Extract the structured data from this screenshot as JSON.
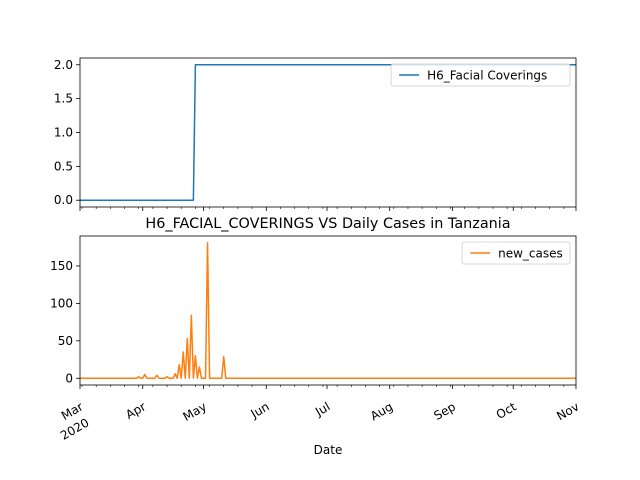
{
  "chart_data": [
    {
      "type": "line",
      "title": "",
      "xlabel": "",
      "ylabel": "",
      "ylim": [
        -0.1,
        2.1
      ],
      "yticks": [
        0.0,
        0.5,
        1.0,
        1.5,
        2.0
      ],
      "ytick_labels": [
        "0.0",
        "0.5",
        "1.0",
        "1.5",
        "2.0"
      ],
      "legend": "upper right",
      "series": [
        {
          "name": "H6_Facial Coverings",
          "color": "#1f77b4",
          "points": [
            [
              "2020-03-01",
              0
            ],
            [
              "2020-04-26",
              0
            ],
            [
              "2020-04-27",
              2
            ],
            [
              "2020-11-01",
              2
            ]
          ]
        }
      ]
    },
    {
      "type": "line",
      "title": "H6_FACIAL_COVERINGS VS Daily Cases in Tanzania",
      "xlabel": "Date",
      "ylabel": "",
      "ylim": [
        -9,
        190
      ],
      "yticks": [
        0,
        50,
        100,
        150
      ],
      "ytick_labels": [
        "0",
        "50",
        "100",
        "150"
      ],
      "legend": "upper right",
      "series": [
        {
          "name": "new_cases",
          "color": "#ff7f0e",
          "points": [
            [
              "2020-03-01",
              0
            ],
            [
              "2020-03-29",
              0
            ],
            [
              "2020-03-30",
              2
            ],
            [
              "2020-03-31",
              0
            ],
            [
              "2020-04-01",
              0
            ],
            [
              "2020-04-02",
              5
            ],
            [
              "2020-04-03",
              0
            ],
            [
              "2020-04-07",
              0
            ],
            [
              "2020-04-08",
              4
            ],
            [
              "2020-04-09",
              0
            ],
            [
              "2020-04-12",
              0
            ],
            [
              "2020-04-13",
              2
            ],
            [
              "2020-04-14",
              0
            ],
            [
              "2020-04-16",
              0
            ],
            [
              "2020-04-17",
              6
            ],
            [
              "2020-04-18",
              0
            ],
            [
              "2020-04-19",
              18
            ],
            [
              "2020-04-20",
              0
            ],
            [
              "2020-04-21",
              35
            ],
            [
              "2020-04-22",
              0
            ],
            [
              "2020-04-23",
              53
            ],
            [
              "2020-04-24",
              0
            ],
            [
              "2020-04-25",
              84
            ],
            [
              "2020-04-26",
              0
            ],
            [
              "2020-04-27",
              30
            ],
            [
              "2020-04-28",
              0
            ],
            [
              "2020-04-29",
              15
            ],
            [
              "2020-04-30",
              0
            ],
            [
              "2020-05-01",
              0
            ],
            [
              "2020-05-02",
              0
            ],
            [
              "2020-05-03",
              181
            ],
            [
              "2020-05-04",
              0
            ],
            [
              "2020-05-10",
              0
            ],
            [
              "2020-05-11",
              29
            ],
            [
              "2020-05-12",
              0
            ],
            [
              "2020-11-01",
              0
            ]
          ]
        }
      ]
    }
  ],
  "x_axis": {
    "start": "2020-03-01",
    "end": "2020-11-01",
    "major_ticks": [
      {
        "date": "2020-03-01",
        "label": "Mar",
        "sublabel": "2020"
      },
      {
        "date": "2020-04-01",
        "label": "Apr",
        "sublabel": ""
      },
      {
        "date": "2020-05-01",
        "label": "May",
        "sublabel": ""
      },
      {
        "date": "2020-06-01",
        "label": "Jun",
        "sublabel": ""
      },
      {
        "date": "2020-07-01",
        "label": "Jul",
        "sublabel": ""
      },
      {
        "date": "2020-08-01",
        "label": "Aug",
        "sublabel": ""
      },
      {
        "date": "2020-09-01",
        "label": "Sep",
        "sublabel": ""
      },
      {
        "date": "2020-10-01",
        "label": "Oct",
        "sublabel": ""
      },
      {
        "date": "2020-11-01",
        "label": "Nov",
        "sublabel": ""
      }
    ]
  }
}
